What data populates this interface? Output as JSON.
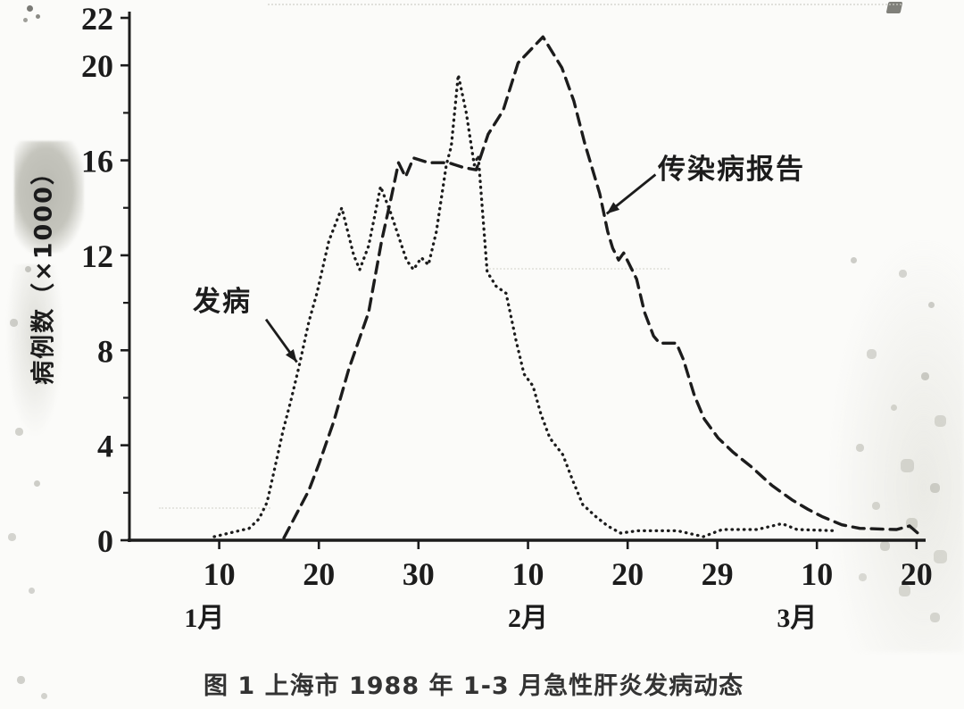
{
  "figure": {
    "caption": "图 1 上海市 1988 年 1-3 月急性肝炎发病动态"
  },
  "chart_data": {
    "type": "line",
    "title": "图 1 上海市 1988 年 1-3 月急性肝炎发病动态",
    "xlabel": "",
    "ylabel": "病例数（×1000）",
    "ink_color": "#1c1c1c",
    "background_color": "#fbfbf9",
    "grid": false,
    "legend_position": "labels with arrows drawn on plot",
    "y_axis": {
      "range": [
        0,
        22
      ],
      "major_ticks": [
        0,
        4,
        8,
        12,
        16,
        20,
        22
      ],
      "minor_ticks": [
        2,
        6,
        10,
        14,
        18
      ],
      "unit": "cases × 1000"
    },
    "x_axis": {
      "note": "day-of-year 1988 (leap year): Jan n = n, Feb n = 31+n, Mar n = 60+n",
      "range": [
        0,
        81
      ],
      "ticks": [
        {
          "label": "10",
          "day": 10
        },
        {
          "label": "20",
          "day": 20
        },
        {
          "label": "30",
          "day": 30
        },
        {
          "label": "10",
          "day": 41
        },
        {
          "label": "20",
          "day": 51
        },
        {
          "label": "29",
          "day": 60
        },
        {
          "label": "10",
          "day": 70
        },
        {
          "label": "20",
          "day": 80
        }
      ],
      "months": [
        {
          "label": "1月",
          "day": 8.5
        },
        {
          "label": "2月",
          "day": 41
        },
        {
          "label": "3月",
          "day": 68
        }
      ]
    },
    "series": [
      {
        "name": "发病",
        "style": "fine-dotted",
        "points": [
          [
            9.5,
            0.15
          ],
          [
            11,
            0.3
          ],
          [
            13,
            0.5
          ],
          [
            14,
            0.9
          ],
          [
            14.8,
            1.6
          ],
          [
            15.5,
            2.9
          ],
          [
            16.4,
            4.6
          ],
          [
            17.2,
            5.9
          ],
          [
            18,
            7.3
          ],
          [
            19,
            9.2
          ],
          [
            19.8,
            10.4
          ],
          [
            21,
            12.6
          ],
          [
            22.3,
            14.0
          ],
          [
            23.5,
            12.0
          ],
          [
            24.1,
            11.4
          ],
          [
            25,
            12.4
          ],
          [
            26.2,
            14.9
          ],
          [
            27.2,
            13.8
          ],
          [
            28,
            12.8
          ],
          [
            28.8,
            11.8
          ],
          [
            29.5,
            11.4
          ],
          [
            30.3,
            11.9
          ],
          [
            31,
            11.6
          ],
          [
            31.8,
            13.0
          ],
          [
            32.8,
            15.8
          ],
          [
            33.3,
            16.6
          ],
          [
            34,
            19.6
          ],
          [
            34.8,
            18.0
          ],
          [
            35.6,
            15.8
          ],
          [
            36,
            16.2
          ],
          [
            36.9,
            11.3
          ],
          [
            37.8,
            10.7
          ],
          [
            38.8,
            10.4
          ],
          [
            39.8,
            8.4
          ],
          [
            40.6,
            7.0
          ],
          [
            41.5,
            6.5
          ],
          [
            42.3,
            5.3
          ],
          [
            43.2,
            4.3
          ],
          [
            44.5,
            3.6
          ],
          [
            45.5,
            2.5
          ],
          [
            46.5,
            1.5
          ],
          [
            47.8,
            1.0
          ],
          [
            49,
            0.6
          ],
          [
            50.3,
            0.3
          ],
          [
            52,
            0.4
          ],
          [
            56,
            0.4
          ],
          [
            58.6,
            0.15
          ],
          [
            60.5,
            0.45
          ],
          [
            64,
            0.45
          ],
          [
            66.5,
            0.7
          ],
          [
            68,
            0.45
          ],
          [
            72,
            0.4
          ]
        ]
      },
      {
        "name": "传染病报告",
        "style": "dashed",
        "points": [
          [
            16.5,
            0.1
          ],
          [
            17.5,
            0.9
          ],
          [
            19,
            2.1
          ],
          [
            20,
            3.2
          ],
          [
            21.5,
            5.0
          ],
          [
            23,
            7.2
          ],
          [
            25,
            9.6
          ],
          [
            26.3,
            12.6
          ],
          [
            27.3,
            14.5
          ],
          [
            28,
            15.9
          ],
          [
            28.7,
            15.3
          ],
          [
            29.5,
            16.1
          ],
          [
            31,
            15.9
          ],
          [
            33,
            15.9
          ],
          [
            34.5,
            15.7
          ],
          [
            35.8,
            15.6
          ],
          [
            37,
            17.1
          ],
          [
            38.5,
            18.1
          ],
          [
            40,
            20.1
          ],
          [
            42.5,
            21.2
          ],
          [
            44.4,
            19.9
          ],
          [
            45.6,
            18.5
          ],
          [
            46.7,
            16.7
          ],
          [
            48.2,
            14.6
          ],
          [
            49,
            13.0
          ],
          [
            49.5,
            12.3
          ],
          [
            50.1,
            11.8
          ],
          [
            50.6,
            12.1
          ],
          [
            51.9,
            11.0
          ],
          [
            52.7,
            9.6
          ],
          [
            53.6,
            8.6
          ],
          [
            54.2,
            8.3
          ],
          [
            55.9,
            8.3
          ],
          [
            56.6,
            7.6
          ],
          [
            57.7,
            6.1
          ],
          [
            58.7,
            5.1
          ],
          [
            60.1,
            4.3
          ],
          [
            61.6,
            3.7
          ],
          [
            63.4,
            3.1
          ],
          [
            65.5,
            2.3
          ],
          [
            67.5,
            1.7
          ],
          [
            69.1,
            1.3
          ],
          [
            70.5,
            1.0
          ],
          [
            72.5,
            0.65
          ],
          [
            74.3,
            0.5
          ],
          [
            78,
            0.45
          ],
          [
            79.3,
            0.6
          ],
          [
            80.4,
            0.2
          ]
        ]
      }
    ],
    "annotations": [
      {
        "text": "发病",
        "arrow": {
          "from": [
            14.7,
            9.3
          ],
          "to": [
            17.8,
            7.5
          ]
        }
      },
      {
        "text": "传染病报告",
        "arrow": {
          "from": [
            53.8,
            15.4
          ],
          "to": [
            48.9,
            13.75
          ]
        }
      }
    ]
  }
}
